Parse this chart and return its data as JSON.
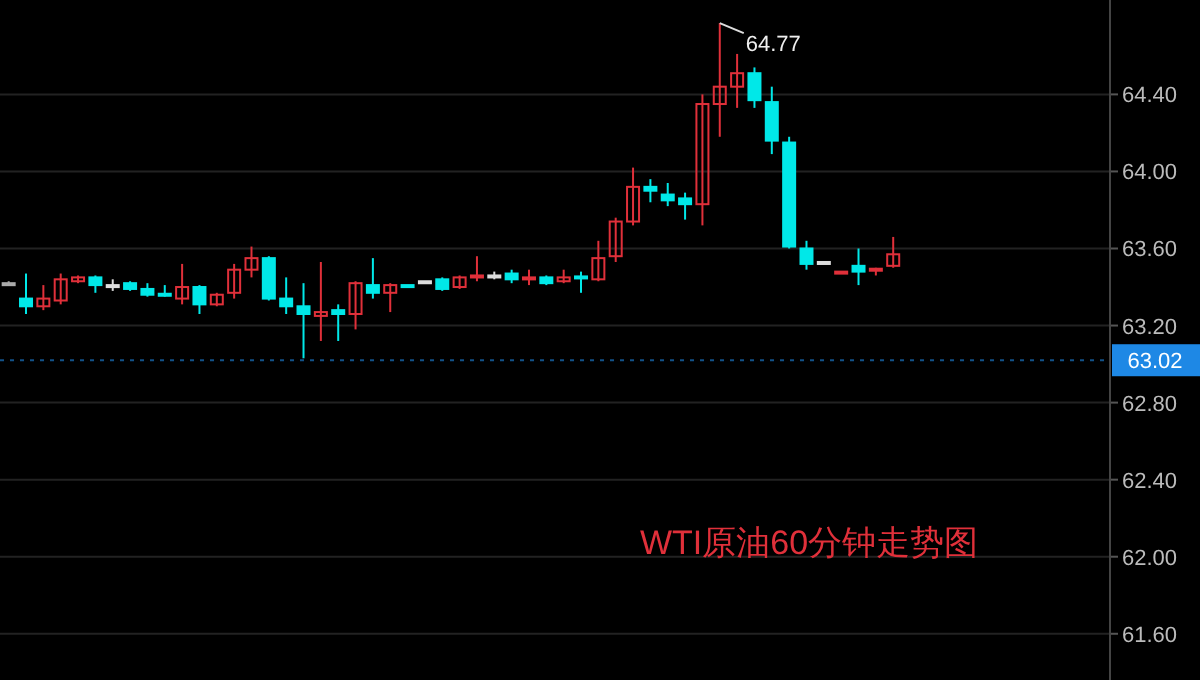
{
  "chart_data": {
    "type": "candlestick",
    "title": "WTI原油60分钟走势图",
    "categories": [
      null,
      null,
      null,
      null,
      null,
      null,
      null,
      null,
      null,
      null,
      null,
      null,
      null,
      null,
      null,
      null,
      null,
      null,
      null,
      null,
      null,
      null,
      null,
      null,
      null,
      null,
      null,
      null,
      null,
      null,
      null,
      null,
      null,
      null,
      null,
      null,
      null,
      null,
      null,
      null,
      null,
      null,
      null,
      null,
      null,
      null,
      null,
      null,
      null,
      null,
      null,
      null,
      null,
      null,
      null,
      null,
      null,
      null,
      null,
      null,
      null,
      null,
      null,
      null
    ],
    "ohlc": [
      [
        63.42,
        63.43,
        63.41,
        63.42
      ],
      [
        63.34,
        63.47,
        63.26,
        63.3
      ],
      [
        63.3,
        63.41,
        63.28,
        63.34
      ],
      [
        63.33,
        63.47,
        63.31,
        63.44
      ],
      [
        63.43,
        63.46,
        63.42,
        63.45
      ],
      [
        63.45,
        63.46,
        63.37,
        63.41
      ],
      [
        63.41,
        63.44,
        63.38,
        63.41
      ],
      [
        63.42,
        63.43,
        63.38,
        63.39
      ],
      [
        63.39,
        63.42,
        63.35,
        63.36
      ],
      [
        63.365,
        63.41,
        63.35,
        63.355
      ],
      [
        63.34,
        63.52,
        63.31,
        63.4
      ],
      [
        63.4,
        63.41,
        63.26,
        63.31
      ],
      [
        63.31,
        63.37,
        63.3,
        63.36
      ],
      [
        63.37,
        63.52,
        63.34,
        63.49
      ],
      [
        63.49,
        63.61,
        63.45,
        63.55
      ],
      [
        63.55,
        63.56,
        63.33,
        63.34
      ],
      [
        63.34,
        63.45,
        63.26,
        63.3
      ],
      [
        63.3,
        63.42,
        63.03,
        63.26
      ],
      [
        63.25,
        63.53,
        63.12,
        63.27
      ],
      [
        63.28,
        63.31,
        63.12,
        63.26
      ],
      [
        63.26,
        63.43,
        63.18,
        63.42
      ],
      [
        63.41,
        63.55,
        63.34,
        63.37
      ],
      [
        63.37,
        63.42,
        63.27,
        63.41
      ],
      [
        63.41,
        63.41,
        63.41,
        63.41
      ],
      [
        63.43,
        63.43,
        63.43,
        63.43
      ],
      [
        63.44,
        63.45,
        63.38,
        63.39
      ],
      [
        63.4,
        63.46,
        63.39,
        63.45
      ],
      [
        63.46,
        63.56,
        63.43,
        63.46
      ],
      [
        63.46,
        63.48,
        63.44,
        63.46
      ],
      [
        63.47,
        63.49,
        63.42,
        63.44
      ],
      [
        63.45,
        63.49,
        63.41,
        63.45
      ],
      [
        63.45,
        63.46,
        63.41,
        63.42
      ],
      [
        63.43,
        63.49,
        63.42,
        63.45
      ],
      [
        63.455,
        63.48,
        63.37,
        63.445
      ],
      [
        63.44,
        63.64,
        63.43,
        63.55
      ],
      [
        63.56,
        63.76,
        63.53,
        63.74
      ],
      [
        63.74,
        64.02,
        63.72,
        63.92
      ],
      [
        63.92,
        63.96,
        63.84,
        63.9
      ],
      [
        63.88,
        63.94,
        63.82,
        63.85
      ],
      [
        63.86,
        63.89,
        63.75,
        63.83
      ],
      [
        63.83,
        64.4,
        63.72,
        64.35
      ],
      [
        64.35,
        64.77,
        64.18,
        64.44
      ],
      [
        64.44,
        64.61,
        64.33,
        64.51
      ],
      [
        64.51,
        64.54,
        64.33,
        64.37
      ],
      [
        64.36,
        64.44,
        64.09,
        64.16
      ],
      [
        64.15,
        64.18,
        63.6,
        63.61
      ],
      [
        63.6,
        63.64,
        63.49,
        63.52
      ],
      [
        63.53,
        63.53,
        63.53,
        63.53
      ],
      [
        63.48,
        63.48,
        63.48,
        63.48
      ],
      [
        63.51,
        63.6,
        63.41,
        63.48
      ],
      [
        63.485,
        63.5,
        63.46,
        63.495
      ],
      [
        63.51,
        63.66,
        63.5,
        63.57
      ],
      null,
      null,
      null,
      null,
      null,
      null,
      null,
      null,
      null,
      null,
      null,
      null
    ],
    "colors": [
      "#aaaaaa",
      "#00e8e8",
      "#e0303a",
      "#e0303a",
      "#e0303a",
      "#00e8e8",
      "#dddddd",
      "#00e8e8",
      "#00e8e8",
      "#00e8e8",
      "#e0303a",
      "#00e8e8",
      "#e0303a",
      "#e0303a",
      "#e0303a",
      "#00e8e8",
      "#00e8e8",
      "#00e8e8",
      "#e0303a",
      "#00e8e8",
      "#e0303a",
      "#00e8e8",
      "#e0303a",
      "#00e8e8",
      "#dddddd",
      "#00e8e8",
      "#e0303a",
      "#e0303a",
      "#dddddd",
      "#00e8e8",
      "#e0303a",
      "#00e8e8",
      "#e0303a",
      "#00e8e8",
      "#e0303a",
      "#e0303a",
      "#e0303a",
      "#00e8e8",
      "#00e8e8",
      "#00e8e8",
      "#e0303a",
      "#e0303a",
      "#e0303a",
      "#00e8e8",
      "#00e8e8",
      "#00e8e8",
      "#00e8e8",
      "#dddddd",
      "#e0303a",
      "#00e8e8",
      "#e0303a",
      "#e0303a",
      null,
      null,
      null,
      null,
      null,
      null,
      null,
      null,
      null,
      null,
      null,
      null
    ],
    "ylim": [
      61.36,
      64.89
    ],
    "yticks": [
      {
        "value": 61.6,
        "label": "61.60"
      },
      {
        "value": 62.0,
        "label": "62.00"
      },
      {
        "value": 62.4,
        "label": "62.40"
      },
      {
        "value": 62.8,
        "label": "62.80"
      },
      {
        "value": 63.2,
        "label": "63.20"
      },
      {
        "value": 63.6,
        "label": "63.60"
      },
      {
        "value": 64.0,
        "label": "64.00"
      },
      {
        "value": 64.4,
        "label": "64.40"
      }
    ],
    "grid": "y",
    "ref_lines": [
      {
        "axis": "y",
        "value": 63.02,
        "label": "63.02",
        "color": "#1e88e5"
      }
    ],
    "annotations": [
      "64.77"
    ]
  }
}
